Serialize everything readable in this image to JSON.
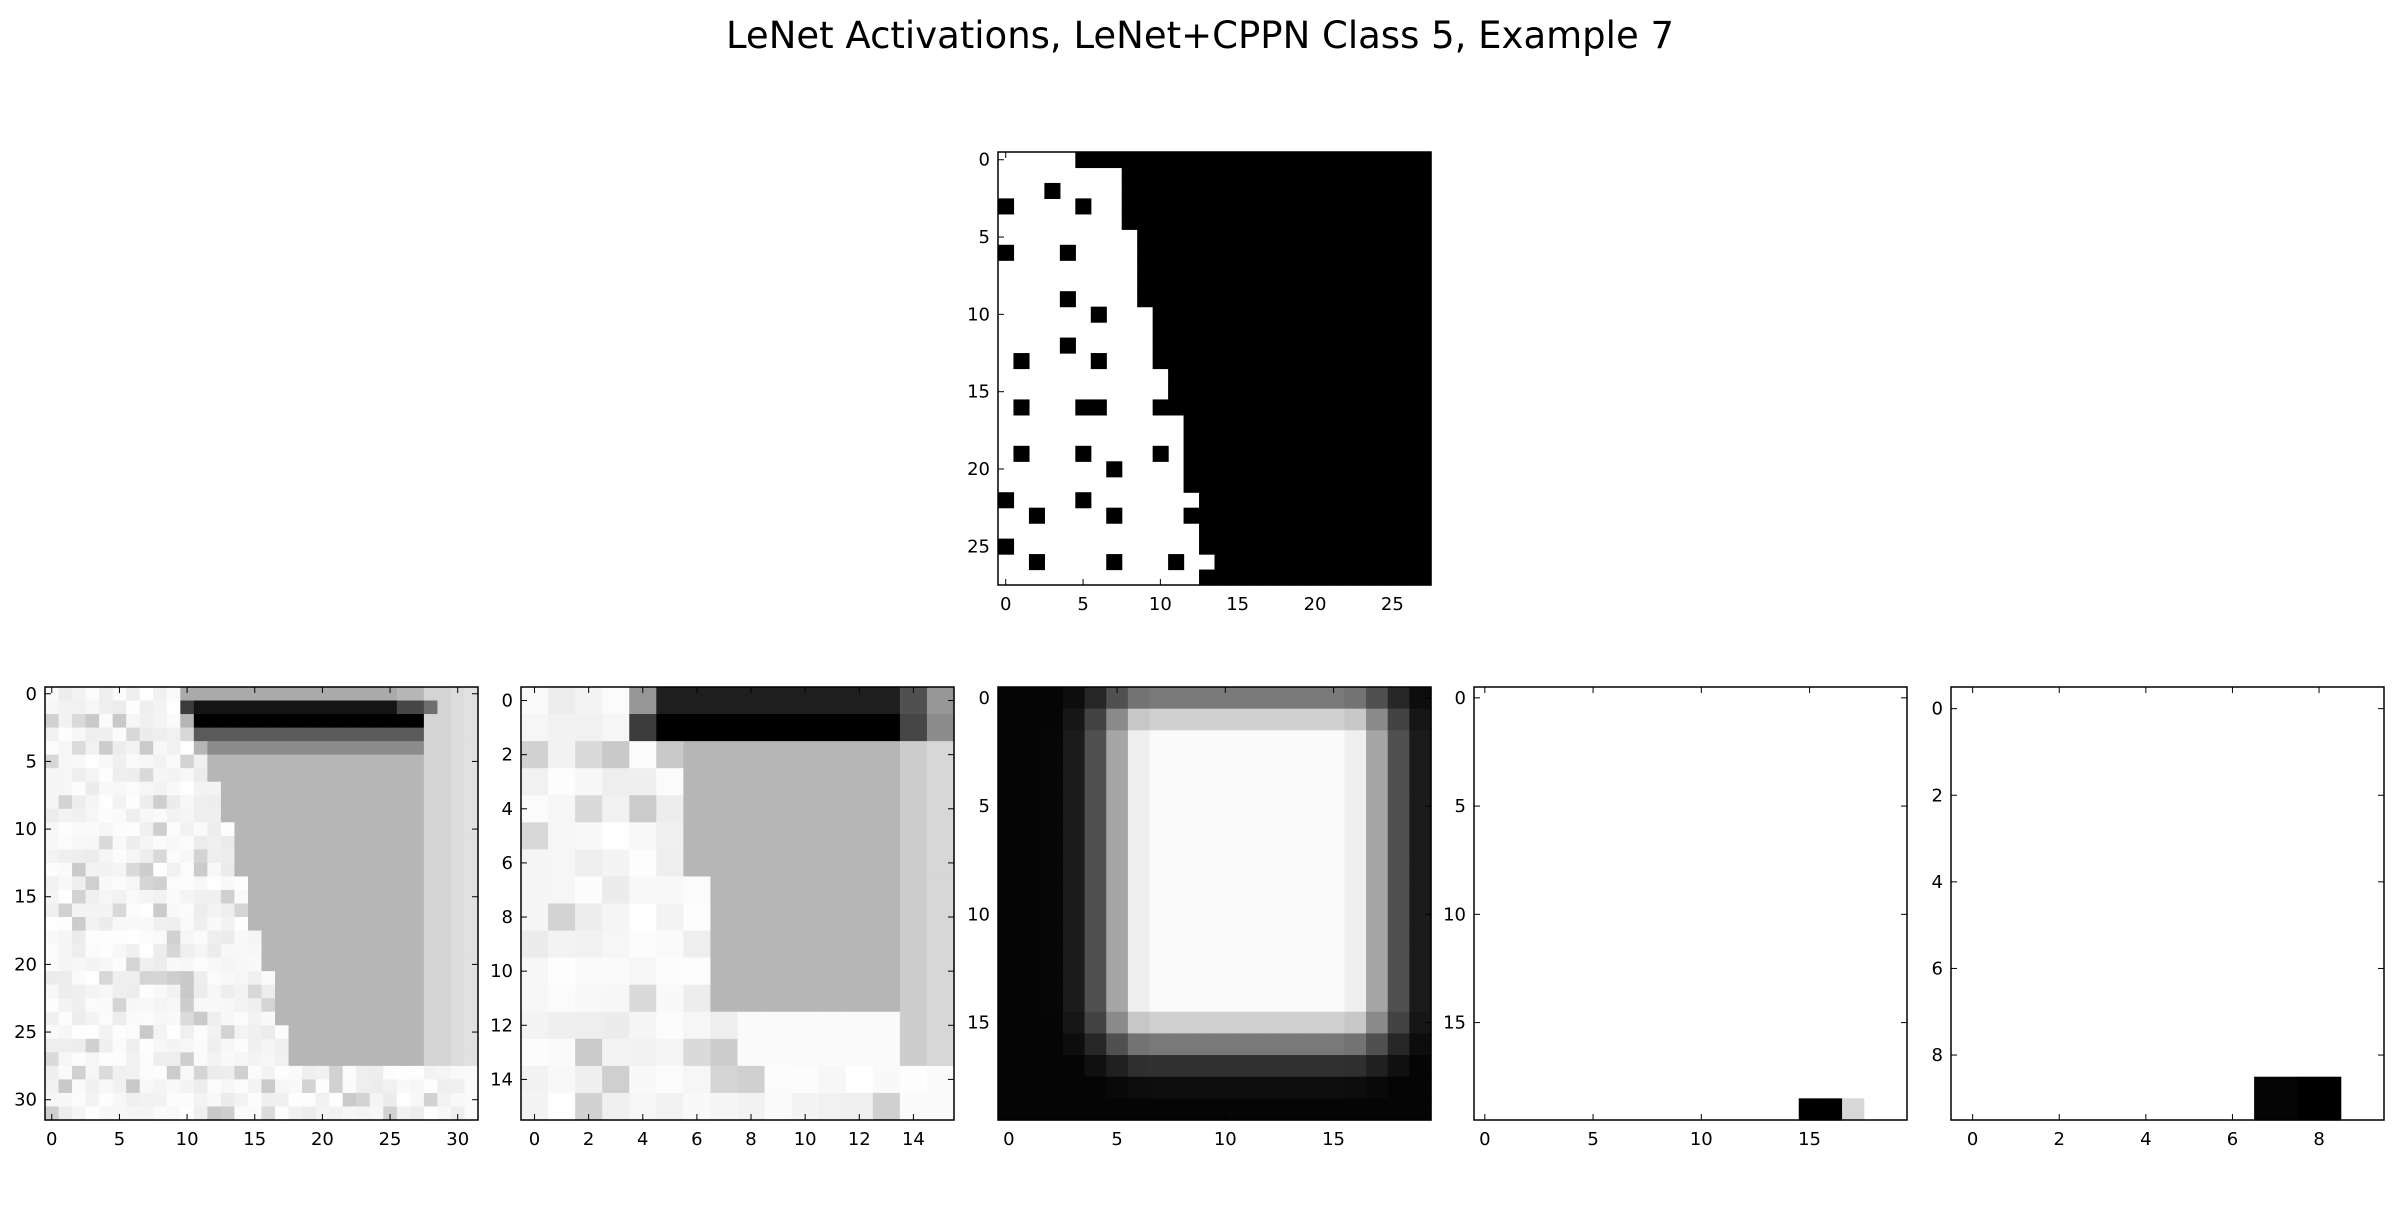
{
  "title": "LeNet Activations, LeNet+CPPN Class 5, Example 7",
  "chart_data": [
    {
      "type": "heatmap",
      "name": "input",
      "size": 28,
      "colormap": "gray",
      "xticks": [
        0,
        5,
        10,
        15,
        20,
        25
      ],
      "yticks": [
        0,
        5,
        10,
        15,
        20,
        25
      ],
      "boundary": [
        5,
        7,
        7,
        7,
        7,
        8,
        8,
        8,
        8,
        8,
        9,
        9,
        9,
        9,
        10,
        10,
        10,
        11,
        11,
        11,
        11,
        11,
        12,
        12,
        12,
        12,
        13,
        12
      ],
      "dots": [
        [
          0,
          5
        ],
        [
          2,
          3
        ],
        [
          3,
          0
        ],
        [
          3,
          5
        ],
        [
          6,
          0
        ],
        [
          6,
          4
        ],
        [
          9,
          4
        ],
        [
          10,
          6
        ],
        [
          12,
          4
        ],
        [
          13,
          1
        ],
        [
          13,
          6
        ],
        [
          16,
          1
        ],
        [
          16,
          5
        ],
        [
          16,
          6
        ],
        [
          16,
          10
        ],
        [
          19,
          1
        ],
        [
          19,
          5
        ],
        [
          19,
          10
        ],
        [
          20,
          7
        ],
        [
          22,
          0
        ],
        [
          22,
          5
        ],
        [
          23,
          2
        ],
        [
          23,
          7
        ],
        [
          23,
          12
        ],
        [
          25,
          0
        ],
        [
          26,
          2
        ],
        [
          26,
          7
        ],
        [
          26,
          11
        ]
      ]
    },
    {
      "type": "heatmap",
      "name": "conv1",
      "size": 32,
      "colormap": "gray",
      "xticks": [
        0,
        5,
        10,
        15,
        20,
        25,
        30
      ],
      "yticks": [
        0,
        5,
        10,
        15,
        20,
        25,
        30
      ],
      "fill_gray": 182,
      "boundary": [
        10,
        10,
        10,
        11,
        11,
        12,
        12,
        13,
        13,
        13,
        14,
        14,
        14,
        14,
        15,
        15,
        15,
        15,
        16,
        16,
        16,
        17,
        17,
        17,
        17,
        18,
        18,
        18,
        31,
        31,
        31,
        31
      ],
      "right_bands": [
        [
          28,
          212
        ],
        [
          29,
          212
        ],
        [
          30,
          220
        ],
        [
          31,
          225
        ]
      ],
      "top_rows": [
        {
          "row": 0,
          "from": 10,
          "to": 26,
          "gray": 170
        },
        {
          "row": 1,
          "from": 10,
          "to": 11,
          "gray": 60
        },
        {
          "row": 1,
          "from": 11,
          "to": 26,
          "gray": 20
        },
        {
          "row": 1,
          "from": 26,
          "to": 28,
          "gray": 70
        },
        {
          "row": 1,
          "from": 28,
          "to": 29,
          "gray": 110
        },
        {
          "row": 2,
          "from": 11,
          "to": 28,
          "gray": 0
        },
        {
          "row": 3,
          "from": 11,
          "to": 28,
          "gray": 90
        },
        {
          "row": 4,
          "from": 12,
          "to": 28,
          "gray": 140
        }
      ]
    },
    {
      "type": "heatmap",
      "name": "pool1",
      "size": 16,
      "colormap": "gray",
      "xticks": [
        0,
        2,
        4,
        6,
        8,
        10,
        12,
        14
      ],
      "yticks": [
        0,
        2,
        4,
        6,
        8,
        10,
        12,
        14
      ],
      "fill_gray": 182,
      "boundary": [
        5,
        5,
        6,
        6,
        6,
        6,
        6,
        7,
        7,
        7,
        7,
        7,
        8,
        8,
        15,
        15
      ],
      "right_bands": [
        [
          14,
          205
        ],
        [
          15,
          215
        ]
      ],
      "top_rows": [
        {
          "row": 0,
          "from": 4,
          "to": 5,
          "gray": 150
        },
        {
          "row": 0,
          "from": 5,
          "to": 14,
          "gray": 30
        },
        {
          "row": 0,
          "from": 14,
          "to": 15,
          "gray": 80
        },
        {
          "row": 0,
          "from": 15,
          "to": 16,
          "gray": 150
        },
        {
          "row": 1,
          "from": 4,
          "to": 5,
          "gray": 60
        },
        {
          "row": 1,
          "from": 5,
          "to": 14,
          "gray": 0
        },
        {
          "row": 1,
          "from": 14,
          "to": 15,
          "gray": 70
        },
        {
          "row": 1,
          "from": 15,
          "to": 16,
          "gray": 140
        }
      ]
    },
    {
      "type": "heatmap",
      "name": "conv2",
      "size": 20,
      "colormap": "gray",
      "xticks": [
        0,
        5,
        10,
        15
      ],
      "yticks": [
        0,
        5,
        10,
        15
      ],
      "center": [
        11.5,
        8.5
      ],
      "half_size": [
        4.5,
        6.0
      ]
    },
    {
      "type": "heatmap",
      "name": "pool2",
      "size": 20,
      "colormap": "gray",
      "xticks": [
        0,
        5,
        10,
        15
      ],
      "yticks": [
        0,
        5,
        10,
        15
      ],
      "cells": [
        [
          19,
          15,
          0
        ],
        [
          19,
          16,
          0
        ],
        [
          19,
          17,
          215
        ]
      ]
    },
    {
      "type": "heatmap",
      "name": "output",
      "size": 10,
      "colormap": "gray",
      "xticks": [
        0,
        2,
        4,
        6,
        8
      ],
      "yticks": [
        0,
        2,
        4,
        6,
        8
      ],
      "cells": [
        [
          9,
          7,
          5
        ],
        [
          9,
          8,
          0
        ]
      ]
    }
  ]
}
